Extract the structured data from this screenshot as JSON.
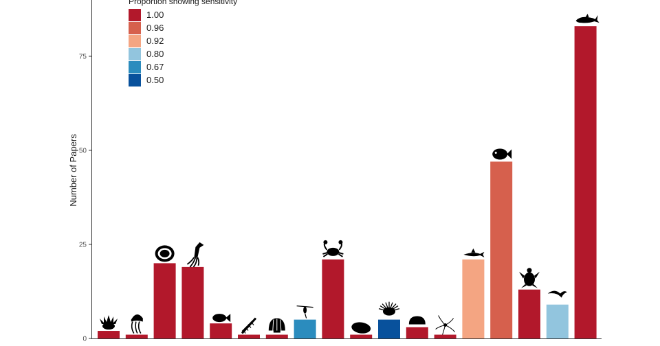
{
  "chart_data": {
    "type": "bar",
    "title": "",
    "xlabel": "",
    "ylabel": "Number of Papers",
    "ylim": [
      0,
      90
    ],
    "yticks": [
      0,
      25,
      50,
      75
    ],
    "grid": false,
    "legend": {
      "title": "Proportion showing sensitivity",
      "placement": "top-left",
      "entries": [
        {
          "label": "1.00",
          "color": "#b2182b"
        },
        {
          "label": "0.96",
          "color": "#d6604d"
        },
        {
          "label": "0.92",
          "color": "#f4a582"
        },
        {
          "label": "0.80",
          "color": "#92c5de"
        },
        {
          "label": "0.67",
          "color": "#2b8cbe"
        },
        {
          "label": "0.50",
          "color": "#08519c"
        }
      ]
    },
    "bars": [
      {
        "icon": "anemone-icon",
        "value": 2,
        "color": "#b2182b"
      },
      {
        "icon": "jellyfish-icon",
        "value": 1,
        "color": "#b2182b"
      },
      {
        "icon": "clam-icon",
        "value": 20,
        "color": "#b2182b"
      },
      {
        "icon": "squid-icon",
        "value": 19,
        "color": "#b2182b"
      },
      {
        "icon": "flatfish-icon",
        "value": 4,
        "color": "#b2182b"
      },
      {
        "icon": "polychaete-worm-icon",
        "value": 1,
        "color": "#b2182b"
      },
      {
        "icon": "scallop-icon",
        "value": 1,
        "color": "#b2182b"
      },
      {
        "icon": "copepod-icon",
        "value": 5,
        "color": "#2b8cbe"
      },
      {
        "icon": "crab-icon",
        "value": 21,
        "color": "#b2182b"
      },
      {
        "icon": "sea-cucumber-icon",
        "value": 1,
        "color": "#b2182b"
      },
      {
        "icon": "sea-urchin-icon",
        "value": 5,
        "color": "#08519c"
      },
      {
        "icon": "chiton-icon",
        "value": 3,
        "color": "#b2182b"
      },
      {
        "icon": "brittle-star-icon",
        "value": 1,
        "color": "#b2182b"
      },
      {
        "icon": "shark-icon",
        "value": 21,
        "color": "#f4a582"
      },
      {
        "icon": "fish-icon",
        "value": 47,
        "color": "#d6604d"
      },
      {
        "icon": "turtle-icon",
        "value": 13,
        "color": "#b2182b"
      },
      {
        "icon": "seabird-icon",
        "value": 9,
        "color": "#92c5de"
      },
      {
        "icon": "whale-icon",
        "value": 83,
        "color": "#b2182b"
      }
    ]
  }
}
